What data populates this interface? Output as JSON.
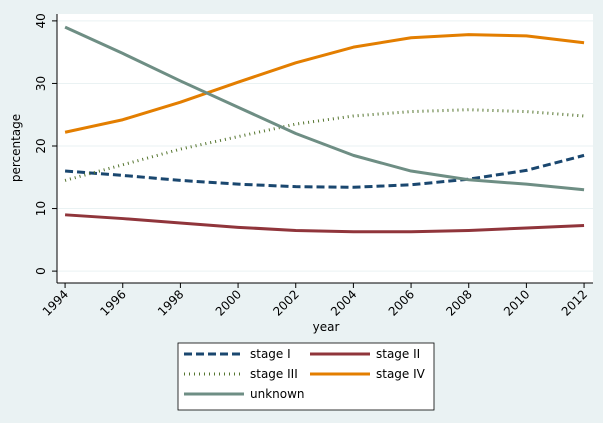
{
  "chart_data": {
    "type": "line",
    "x_label": "year",
    "y_label": "percentage",
    "x": [
      1994,
      1996,
      1998,
      2000,
      2002,
      2004,
      2006,
      2008,
      2010,
      2012
    ],
    "series": [
      {
        "name": "stage I",
        "color": "#1a476f",
        "dash": "dashed",
        "values": [
          16,
          15.3,
          14.5,
          13.9,
          13.5,
          13.4,
          13.8,
          14.7,
          16.1,
          18.5
        ]
      },
      {
        "name": "stage II",
        "color": "#90353b",
        "dash": "solid",
        "values": [
          9,
          8.4,
          7.7,
          7.0,
          6.5,
          6.3,
          6.3,
          6.5,
          6.9,
          7.3
        ]
      },
      {
        "name": "stage III",
        "color": "#55752f",
        "dash": "dotted",
        "values": [
          14.5,
          17,
          19.5,
          21.5,
          23.5,
          24.8,
          25.5,
          25.8,
          25.5,
          24.8
        ]
      },
      {
        "name": "stage IV",
        "color": "#e37e00",
        "dash": "solid",
        "values": [
          22.2,
          24.2,
          27,
          30.2,
          33.3,
          35.8,
          37.3,
          37.8,
          37.6,
          36.5
        ]
      },
      {
        "name": "unknown",
        "color": "#6e8e84",
        "dash": "solid",
        "values": [
          39,
          34.8,
          30.4,
          26.2,
          22.0,
          18.5,
          16.0,
          14.6,
          13.9,
          13.0
        ]
      }
    ],
    "xlim": [
      1993.72,
      2012.31
    ],
    "xticks": [
      1994,
      1996,
      1998,
      2000,
      2002,
      2004,
      2006,
      2008,
      2010,
      2012
    ],
    "ylim": [
      -1.9,
      41.1
    ],
    "yticks": [
      0,
      10,
      20,
      30,
      40
    ],
    "grid": true,
    "legend": "bottom"
  }
}
